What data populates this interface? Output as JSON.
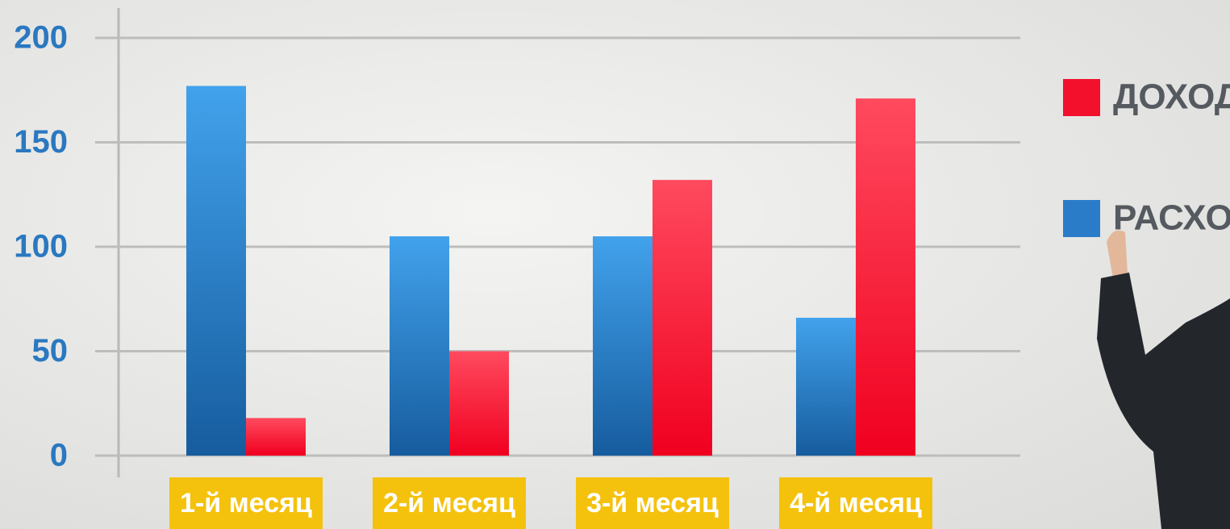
{
  "chart_data": {
    "type": "bar",
    "categories": [
      "1-й месяц",
      "2-й месяц",
      "3-й месяц",
      "4-й месяц"
    ],
    "series": [
      {
        "name": "РАСХОД",
        "color": "#2a7cc8",
        "values": [
          177,
          105,
          105,
          66
        ]
      },
      {
        "name": "ДОХОД",
        "color": "#f2102c",
        "values": [
          18,
          50,
          132,
          171
        ]
      }
    ],
    "ylim": [
      0,
      200
    ],
    "yticks": [
      0,
      50,
      100,
      150,
      200
    ],
    "grid": true
  }
}
